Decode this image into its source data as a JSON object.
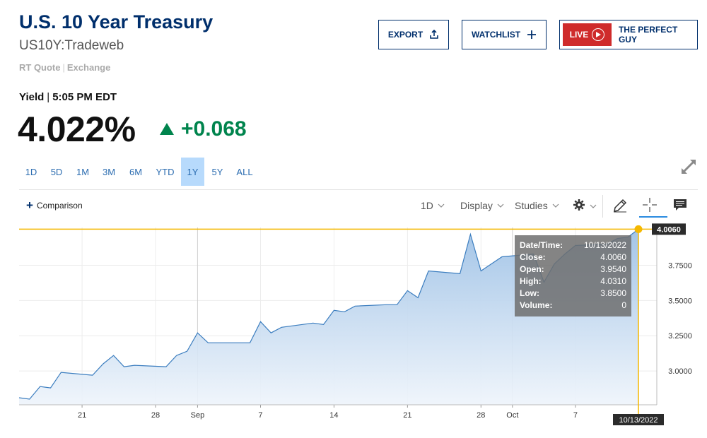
{
  "header": {
    "title": "U.S. 10 Year Treasury",
    "symbol": "US10Y:Tradeweb",
    "quote_type": "RT Quote",
    "quote_exchange": "Exchange"
  },
  "buttons": {
    "export": "EXPORT",
    "watchlist": "WATCHLIST",
    "live": "LIVE",
    "show": "THE PERFECT GUY"
  },
  "quote": {
    "label": "Yield",
    "time": "5:05 PM EDT",
    "price": "4.022%",
    "change": "+0.068",
    "change_color": "#00844d"
  },
  "ranges": [
    {
      "label": "1D",
      "active": false
    },
    {
      "label": "5D",
      "active": false
    },
    {
      "label": "1M",
      "active": false
    },
    {
      "label": "3M",
      "active": false
    },
    {
      "label": "6M",
      "active": false
    },
    {
      "label": "YTD",
      "active": false
    },
    {
      "label": "1Y",
      "active": true
    },
    {
      "label": "5Y",
      "active": false
    },
    {
      "label": "ALL",
      "active": false
    }
  ],
  "toolbar": {
    "comparison": "Comparison",
    "interval": "1D",
    "display": "Display",
    "studies": "Studies"
  },
  "tooltip": {
    "datetime_label": "Date/Time:",
    "datetime": "10/13/2022",
    "close_label": "Close:",
    "close": "4.0060",
    "open_label": "Open:",
    "open": "3.9540",
    "high_label": "High:",
    "high": "4.0310",
    "low_label": "Low:",
    "low": "3.8500",
    "volume_label": "Volume:",
    "volume": "0"
  },
  "chart_data": {
    "type": "area",
    "x": [
      "Aug 15",
      "Aug 16",
      "Aug 17",
      "Aug 18",
      "Aug 19",
      "Aug 22",
      "Aug 23",
      "Aug 24",
      "Aug 25",
      "Aug 26",
      "Aug 29",
      "Aug 30",
      "Aug 31",
      "Sep 1",
      "Sep 2",
      "Sep 6",
      "Sep 7",
      "Sep 8",
      "Sep 9",
      "Sep 12",
      "Sep 13",
      "Sep 14",
      "Sep 15",
      "Sep 16",
      "Sep 19",
      "Sep 20",
      "Sep 21",
      "Sep 22",
      "Sep 23",
      "Sep 26",
      "Sep 27",
      "Sep 28",
      "Sep 29",
      "Sep 30",
      "Oct 3",
      "Oct 4",
      "Oct 5",
      "Oct 6",
      "Oct 7",
      "Oct 10",
      "Oct 11",
      "Oct 12",
      "Oct 13"
    ],
    "values": [
      2.81,
      2.8,
      2.89,
      2.88,
      2.99,
      2.97,
      3.05,
      3.11,
      3.03,
      3.04,
      3.03,
      3.11,
      3.14,
      3.27,
      3.2,
      3.2,
      3.35,
      3.27,
      3.31,
      3.34,
      3.33,
      3.43,
      3.42,
      3.46,
      3.47,
      3.47,
      3.57,
      3.52,
      3.71,
      3.69,
      3.97,
      3.71,
      3.76,
      3.81,
      3.83,
      3.63,
      3.76,
      3.83,
      3.89,
      3.9,
      3.94,
      3.95,
      4.006
    ],
    "xlabels": [
      {
        "label": "21",
        "x": "Aug 21"
      },
      {
        "label": "28",
        "x": "Aug 28"
      },
      {
        "label": "Sep",
        "x": "Sep 1"
      },
      {
        "label": "7",
        "x": "Sep 7"
      },
      {
        "label": "14",
        "x": "Sep 14"
      },
      {
        "label": "21",
        "x": "Sep 21"
      },
      {
        "label": "28",
        "x": "Sep 28"
      },
      {
        "label": "Oct",
        "x": "Oct 1"
      },
      {
        "label": "7",
        "x": "Oct 7"
      }
    ],
    "yticks": [
      "3.0000",
      "3.2500",
      "3.5000",
      "3.7500"
    ],
    "ylim": [
      2.76,
      4.018
    ],
    "current_value": "4.0060",
    "current_date": "10/13/2022",
    "line_color": "#3b7dbf",
    "crosshair_color": "#f5b800",
    "grid": true
  }
}
